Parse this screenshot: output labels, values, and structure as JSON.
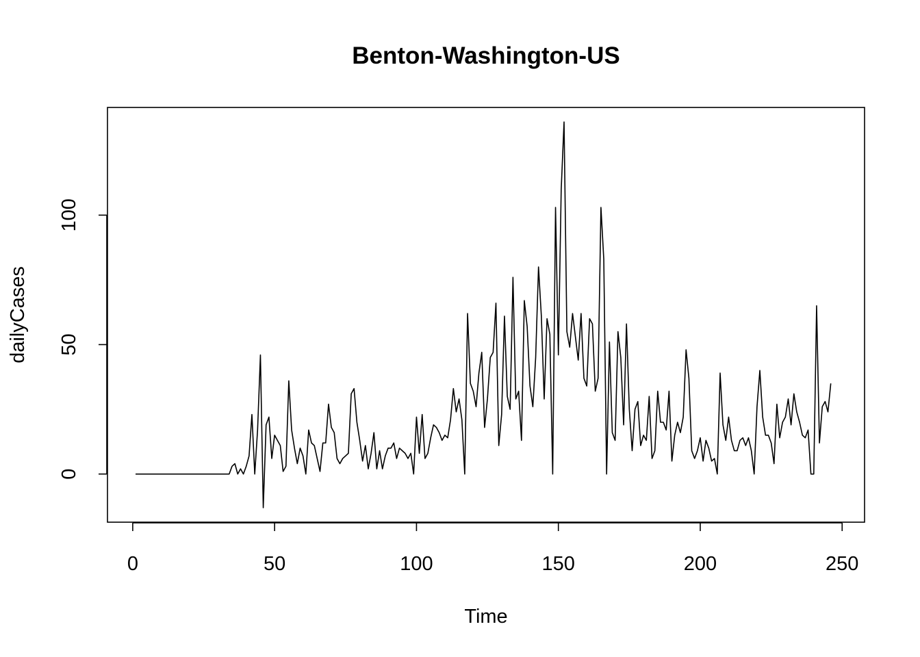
{
  "chart_data": {
    "type": "line",
    "title": "Benton-Washington-US",
    "xlabel": "Time",
    "ylabel": "dailyCases",
    "xlim": [
      -8.9,
      257.9
    ],
    "ylim": [
      -18.6,
      141.6
    ],
    "xticks": [
      0,
      50,
      100,
      150,
      200,
      250
    ],
    "yticks": [
      0,
      50,
      100
    ],
    "grid": false,
    "legend": "none",
    "line_color": "#000000",
    "series": [
      {
        "values": [
          0,
          0,
          0,
          0,
          0,
          0,
          0,
          0,
          0,
          0,
          0,
          0,
          0,
          0,
          0,
          0,
          0,
          0,
          0,
          0,
          0,
          0,
          0,
          0,
          0,
          0,
          0,
          0,
          0,
          0,
          0,
          0,
          0,
          0,
          3,
          4,
          0,
          2,
          0,
          3,
          7,
          23,
          0,
          17,
          46,
          -13,
          19,
          22,
          6,
          15,
          13,
          11,
          1,
          3,
          36,
          17,
          10,
          4,
          10,
          7,
          0,
          17,
          12,
          11,
          6,
          1,
          12,
          12,
          27,
          18,
          16,
          6,
          4,
          6,
          7,
          8,
          31,
          33,
          20,
          13,
          5,
          11,
          2,
          8,
          16,
          2,
          9,
          2,
          7,
          10,
          10,
          12,
          6,
          10,
          9,
          8,
          6,
          8,
          0,
          22,
          8,
          23,
          6,
          8,
          14,
          19,
          18,
          16,
          13,
          15,
          14,
          21,
          33,
          24,
          29,
          21,
          0,
          62,
          35,
          32,
          26,
          39,
          47,
          18,
          29,
          45,
          47,
          66,
          11,
          23,
          61,
          30,
          25,
          76,
          29,
          32,
          13,
          67,
          57,
          34,
          26,
          45,
          80,
          61,
          29,
          60,
          54,
          0,
          103,
          46,
          110,
          136,
          55,
          49,
          62,
          53,
          44,
          62,
          37,
          34,
          60,
          58,
          32,
          37,
          103,
          83,
          0,
          51,
          16,
          13,
          55,
          45,
          19,
          58,
          25,
          9,
          25,
          28,
          11,
          15,
          13,
          30,
          6,
          9,
          32,
          20,
          20,
          17,
          32,
          5,
          15,
          20,
          16,
          22,
          48,
          37,
          9,
          6,
          9,
          14,
          5,
          13,
          10,
          5,
          6,
          0,
          39,
          19,
          13,
          22,
          13,
          9,
          9,
          13,
          14,
          11,
          14,
          9,
          0,
          26,
          40,
          22,
          15,
          15,
          12,
          4,
          27,
          14,
          20,
          22,
          29,
          19,
          31,
          24,
          20,
          15,
          14,
          17,
          0,
          0,
          65,
          12,
          26,
          28,
          24,
          35
        ]
      }
    ]
  }
}
